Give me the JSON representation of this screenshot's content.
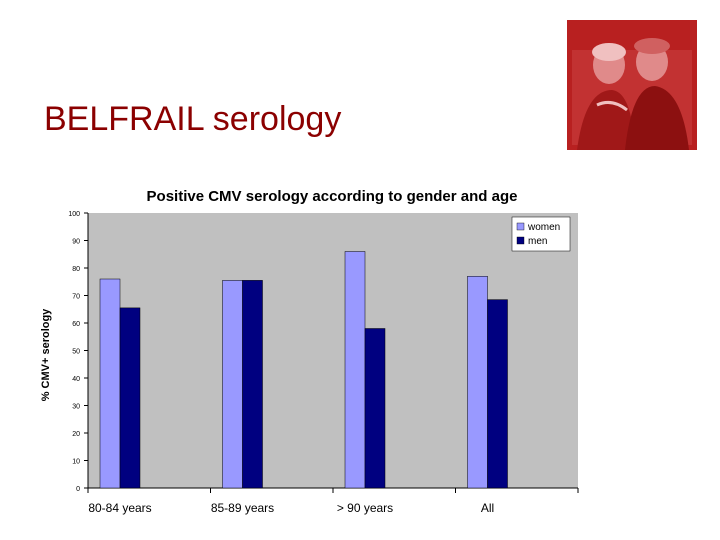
{
  "slide": {
    "title": "BELFRAIL serology",
    "photo_icon": "elderly-couple-photo"
  },
  "colors": {
    "title": "#8b0000",
    "plot_bg": "#c0c0c0",
    "women": "#9999ff",
    "men": "#000080",
    "photo_tint": "#b82020"
  },
  "chart_data": {
    "type": "bar",
    "title": "Positive CMV serology according to gender and age",
    "xlabel": "",
    "ylabel": "% CMV+ serology",
    "categories": [
      "80-84 years",
      "85-89 years",
      "> 90 years",
      "All"
    ],
    "series": [
      {
        "name": "women",
        "values": [
          76,
          75.5,
          86,
          77
        ]
      },
      {
        "name": "men",
        "values": [
          65.5,
          75.5,
          58,
          68.5
        ]
      }
    ],
    "ylim": [
      0,
      100
    ],
    "yticks": [
      0,
      10,
      20,
      30,
      40,
      50,
      60,
      70,
      80,
      90,
      100
    ],
    "grid": false,
    "legend_position": "top-right"
  }
}
